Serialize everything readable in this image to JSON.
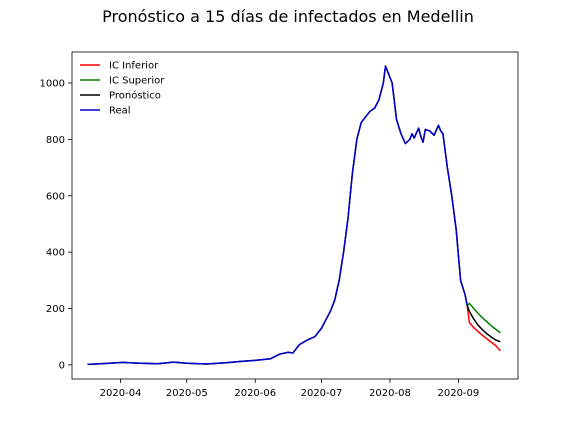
{
  "chart_data": {
    "type": "line",
    "title": "Pronóstico a 15 días de infectados en Medellin",
    "xlabel": "",
    "ylabel": "",
    "x_ticks": [
      "2020-04",
      "2020-05",
      "2020-06",
      "2020-07",
      "2020-08",
      "2020-09"
    ],
    "y_ticks": [
      0,
      200,
      400,
      600,
      800,
      1000
    ],
    "xlim": [
      "2020-03-10",
      "2020-09-28"
    ],
    "ylim": [
      -50,
      1110
    ],
    "grid": false,
    "legend_position": "top-left",
    "series": [
      {
        "name": "IC Inferior",
        "color": "#ff0000",
        "points": [
          [
            "2020-09-05",
            210
          ],
          [
            "2020-09-06",
            150
          ],
          [
            "2020-09-08",
            132
          ],
          [
            "2020-09-10",
            118
          ],
          [
            "2020-09-12",
            104
          ],
          [
            "2020-09-14",
            92
          ],
          [
            "2020-09-16",
            80
          ],
          [
            "2020-09-18",
            68
          ],
          [
            "2020-09-20",
            50
          ]
        ]
      },
      {
        "name": "IC Superior",
        "color": "#008000",
        "points": [
          [
            "2020-09-05",
            210
          ],
          [
            "2020-09-06",
            218
          ],
          [
            "2020-09-08",
            200
          ],
          [
            "2020-09-10",
            182
          ],
          [
            "2020-09-12",
            166
          ],
          [
            "2020-09-14",
            152
          ],
          [
            "2020-09-16",
            138
          ],
          [
            "2020-09-18",
            126
          ],
          [
            "2020-09-20",
            114
          ]
        ]
      },
      {
        "name": "Pronóstico",
        "color": "#000000",
        "points": [
          [
            "2020-03-17",
            2
          ],
          [
            "2020-03-25",
            5
          ],
          [
            "2020-04-02",
            9
          ],
          [
            "2020-04-10",
            6
          ],
          [
            "2020-04-18",
            4
          ],
          [
            "2020-04-25",
            10
          ],
          [
            "2020-05-01",
            6
          ],
          [
            "2020-05-10",
            3
          ],
          [
            "2020-05-18",
            7
          ],
          [
            "2020-05-25",
            12
          ],
          [
            "2020-06-01",
            16
          ],
          [
            "2020-06-08",
            22
          ],
          [
            "2020-06-12",
            38
          ],
          [
            "2020-06-16",
            45
          ],
          [
            "2020-06-18",
            42
          ],
          [
            "2020-06-21",
            72
          ],
          [
            "2020-06-25",
            90
          ],
          [
            "2020-06-28",
            100
          ],
          [
            "2020-07-01",
            130
          ],
          [
            "2020-07-03",
            160
          ],
          [
            "2020-07-05",
            190
          ],
          [
            "2020-07-07",
            230
          ],
          [
            "2020-07-09",
            300
          ],
          [
            "2020-07-11",
            400
          ],
          [
            "2020-07-13",
            520
          ],
          [
            "2020-07-15",
            680
          ],
          [
            "2020-07-17",
            800
          ],
          [
            "2020-07-19",
            860
          ],
          [
            "2020-07-21",
            880
          ],
          [
            "2020-07-23",
            900
          ],
          [
            "2020-07-25",
            910
          ],
          [
            "2020-07-27",
            940
          ],
          [
            "2020-07-29",
            1000
          ],
          [
            "2020-07-30",
            1060
          ],
          [
            "2020-07-31",
            1040
          ],
          [
            "2020-08-02",
            1000
          ],
          [
            "2020-08-04",
            870
          ],
          [
            "2020-08-06",
            820
          ],
          [
            "2020-08-08",
            785
          ],
          [
            "2020-08-10",
            800
          ],
          [
            "2020-08-11",
            820
          ],
          [
            "2020-08-12",
            805
          ],
          [
            "2020-08-14",
            840
          ],
          [
            "2020-08-15",
            810
          ],
          [
            "2020-08-16",
            790
          ],
          [
            "2020-08-17",
            835
          ],
          [
            "2020-08-19",
            830
          ],
          [
            "2020-08-21",
            815
          ],
          [
            "2020-08-23",
            850
          ],
          [
            "2020-08-24",
            830
          ],
          [
            "2020-08-25",
            820
          ],
          [
            "2020-08-27",
            700
          ],
          [
            "2020-08-29",
            600
          ],
          [
            "2020-08-31",
            480
          ],
          [
            "2020-09-02",
            300
          ],
          [
            "2020-09-04",
            250
          ],
          [
            "2020-09-05",
            210
          ],
          [
            "2020-09-06",
            190
          ],
          [
            "2020-09-08",
            162
          ],
          [
            "2020-09-10",
            140
          ],
          [
            "2020-09-12",
            124
          ],
          [
            "2020-09-14",
            110
          ],
          [
            "2020-09-16",
            98
          ],
          [
            "2020-09-18",
            88
          ],
          [
            "2020-09-20",
            82
          ]
        ]
      },
      {
        "name": "Real",
        "color": "#0000cc",
        "points": [
          [
            "2020-03-17",
            2
          ],
          [
            "2020-03-25",
            5
          ],
          [
            "2020-04-02",
            9
          ],
          [
            "2020-04-10",
            6
          ],
          [
            "2020-04-18",
            4
          ],
          [
            "2020-04-25",
            10
          ],
          [
            "2020-05-01",
            6
          ],
          [
            "2020-05-10",
            3
          ],
          [
            "2020-05-18",
            7
          ],
          [
            "2020-05-25",
            12
          ],
          [
            "2020-06-01",
            16
          ],
          [
            "2020-06-08",
            22
          ],
          [
            "2020-06-12",
            38
          ],
          [
            "2020-06-16",
            45
          ],
          [
            "2020-06-18",
            42
          ],
          [
            "2020-06-21",
            72
          ],
          [
            "2020-06-25",
            90
          ],
          [
            "2020-06-28",
            100
          ],
          [
            "2020-07-01",
            130
          ],
          [
            "2020-07-03",
            160
          ],
          [
            "2020-07-05",
            190
          ],
          [
            "2020-07-07",
            230
          ],
          [
            "2020-07-09",
            300
          ],
          [
            "2020-07-11",
            400
          ],
          [
            "2020-07-13",
            520
          ],
          [
            "2020-07-15",
            680
          ],
          [
            "2020-07-17",
            800
          ],
          [
            "2020-07-19",
            860
          ],
          [
            "2020-07-21",
            880
          ],
          [
            "2020-07-23",
            900
          ],
          [
            "2020-07-25",
            910
          ],
          [
            "2020-07-27",
            940
          ],
          [
            "2020-07-29",
            1000
          ],
          [
            "2020-07-30",
            1060
          ],
          [
            "2020-07-31",
            1040
          ],
          [
            "2020-08-02",
            1000
          ],
          [
            "2020-08-04",
            870
          ],
          [
            "2020-08-06",
            820
          ],
          [
            "2020-08-08",
            785
          ],
          [
            "2020-08-10",
            800
          ],
          [
            "2020-08-11",
            820
          ],
          [
            "2020-08-12",
            805
          ],
          [
            "2020-08-14",
            840
          ],
          [
            "2020-08-15",
            810
          ],
          [
            "2020-08-16",
            790
          ],
          [
            "2020-08-17",
            835
          ],
          [
            "2020-08-19",
            830
          ],
          [
            "2020-08-21",
            815
          ],
          [
            "2020-08-23",
            850
          ],
          [
            "2020-08-24",
            830
          ],
          [
            "2020-08-25",
            820
          ],
          [
            "2020-08-27",
            700
          ],
          [
            "2020-08-29",
            600
          ],
          [
            "2020-08-31",
            480
          ],
          [
            "2020-09-02",
            300
          ],
          [
            "2020-09-04",
            250
          ],
          [
            "2020-09-05",
            210
          ]
        ]
      }
    ]
  }
}
